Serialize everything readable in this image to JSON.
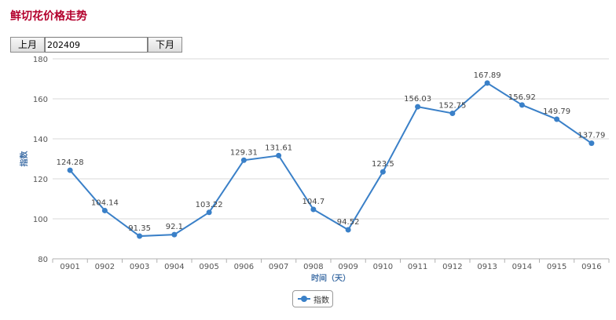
{
  "page": {
    "title": "鲜切花价格走势"
  },
  "month_selector": {
    "prev_label": "上月",
    "value": "202409",
    "next_label": "下月"
  },
  "colors": {
    "title": "#b3002d",
    "series": "#3a80c8",
    "grid": "#d9d9d9",
    "axis_text": "#555555",
    "axis_label": "#4472a8"
  },
  "chart_data": {
    "type": "line",
    "title": "",
    "xlabel": "时间（天）",
    "ylabel": "指数",
    "categories": [
      "0901",
      "0902",
      "0903",
      "0904",
      "0905",
      "0906",
      "0907",
      "0908",
      "0909",
      "0910",
      "0911",
      "0912",
      "0913",
      "0914",
      "0915",
      "0916"
    ],
    "series": [
      {
        "name": "指数",
        "values": [
          124.28,
          104.14,
          91.35,
          92.1,
          103.22,
          129.31,
          131.61,
          104.7,
          94.52,
          123.5,
          156.03,
          152.75,
          167.89,
          156.92,
          149.79,
          137.79
        ],
        "labels": [
          "124.28",
          "104.14",
          "91.35",
          "92.1",
          "103.22",
          "129.31",
          "131.61",
          "104.7",
          "94.52",
          "123.5",
          "156.03",
          "152.75",
          "167.89",
          "156.92",
          "149.79",
          "137.79"
        ]
      }
    ],
    "ylim": [
      80,
      180
    ],
    "yticks": [
      80,
      100,
      120,
      140,
      160,
      180
    ],
    "grid": true,
    "legend": "bottom-center"
  }
}
